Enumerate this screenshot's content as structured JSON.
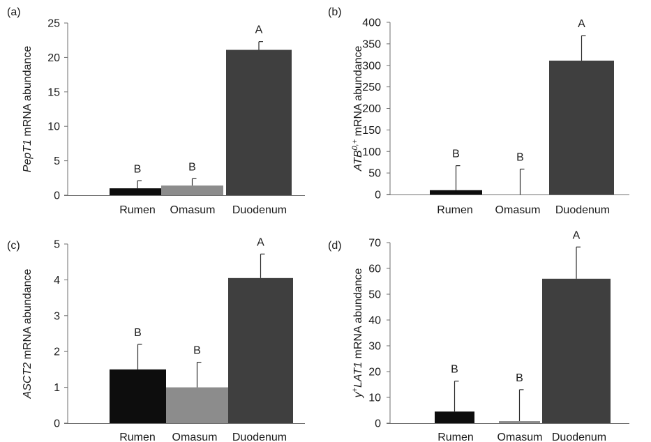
{
  "chart_data": [
    {
      "panel_label": "(a)",
      "type": "bar",
      "ylabel": {
        "gene": "PepT1",
        "sup": "",
        "suffix": " mRNA abundance"
      },
      "categories": [
        "Rumen",
        "Omasum",
        "Duodenum"
      ],
      "values": [
        1.0,
        1.4,
        21.1
      ],
      "errors": [
        1.1,
        1.0,
        1.2
      ],
      "letters": [
        "B",
        "B",
        "A"
      ],
      "ylim": [
        0,
        25
      ],
      "yticks": [
        0,
        5,
        10,
        15,
        20,
        25
      ],
      "colors": [
        "#0d0d0d",
        "#8c8c8c",
        "#3f3f3f"
      ]
    },
    {
      "panel_label": "(b)",
      "type": "bar",
      "ylabel": {
        "gene": "ATB",
        "sup": "0,+",
        "suffix": " mRNA abundance"
      },
      "categories": [
        "Rumen",
        "Omasum",
        "Duodenum"
      ],
      "values": [
        10,
        0,
        311
      ],
      "errors": [
        57,
        59,
        58
      ],
      "letters": [
        "B",
        "B",
        "A"
      ],
      "ylim": [
        0,
        400
      ],
      "yticks": [
        0,
        50,
        100,
        150,
        200,
        250,
        300,
        350,
        400
      ],
      "colors": [
        "#0d0d0d",
        "#8c8c8c",
        "#3f3f3f"
      ]
    },
    {
      "panel_label": "(c)",
      "type": "bar",
      "ylabel": {
        "gene": "ASCT2",
        "sup": "",
        "suffix": " mRNA abundance"
      },
      "categories": [
        "Rumen",
        "Omasum",
        "Duodenum"
      ],
      "values": [
        1.5,
        1.0,
        4.05
      ],
      "errors": [
        0.7,
        0.7,
        0.67
      ],
      "letters": [
        "B",
        "B",
        "A"
      ],
      "ylim": [
        0,
        5
      ],
      "yticks": [
        0,
        1,
        2,
        3,
        4,
        5
      ],
      "colors": [
        "#0d0d0d",
        "#8c8c8c",
        "#3f3f3f"
      ]
    },
    {
      "panel_label": "(d)",
      "type": "bar",
      "ylabel": {
        "prefix": "y",
        "presup": "+",
        "gene": "LAT1",
        "sup": "",
        "suffix": " mRNA abundance"
      },
      "categories": [
        "Rumen",
        "Omasum",
        "Duodenum"
      ],
      "values": [
        4.5,
        0.8,
        56
      ],
      "errors": [
        11.8,
        12.2,
        12.3
      ],
      "letters": [
        "B",
        "B",
        "A"
      ],
      "ylim": [
        0,
        70
      ],
      "yticks": [
        0,
        10,
        20,
        30,
        40,
        50,
        60,
        70
      ],
      "colors": [
        "#0d0d0d",
        "#8c8c8c",
        "#3f3f3f"
      ]
    }
  ]
}
